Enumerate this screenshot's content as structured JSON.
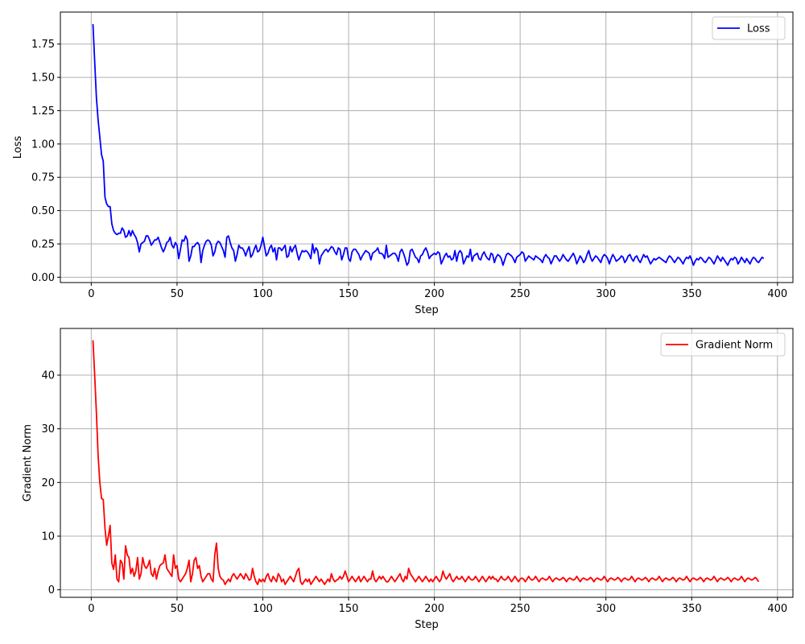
{
  "chart_data": [
    {
      "type": "line",
      "xlabel": "Step",
      "ylabel": "Loss",
      "xlim": [
        -18,
        409
      ],
      "ylim": [
        -0.04,
        1.99
      ],
      "xticks": [
        0,
        50,
        100,
        150,
        200,
        250,
        300,
        350,
        400
      ],
      "yticks": [
        0.0,
        0.25,
        0.5,
        0.75,
        1.0,
        1.25,
        1.5,
        1.75
      ],
      "ytick_labels": [
        "0.00",
        "0.25",
        "0.50",
        "0.75",
        "1.00",
        "1.25",
        "1.50",
        "1.75"
      ],
      "grid": true,
      "legend": "top-right",
      "series": [
        {
          "name": "Loss",
          "color": "#0000ff",
          "x_start": 1,
          "x_step": 1,
          "values": [
            1.9,
            1.62,
            1.35,
            1.18,
            1.05,
            0.92,
            0.87,
            0.6,
            0.55,
            0.53,
            0.53,
            0.4,
            0.35,
            0.33,
            0.32,
            0.33,
            0.33,
            0.37,
            0.35,
            0.3,
            0.31,
            0.35,
            0.31,
            0.35,
            0.32,
            0.3,
            0.26,
            0.19,
            0.25,
            0.26,
            0.27,
            0.31,
            0.31,
            0.28,
            0.24,
            0.26,
            0.28,
            0.28,
            0.3,
            0.26,
            0.22,
            0.19,
            0.22,
            0.26,
            0.27,
            0.3,
            0.24,
            0.22,
            0.26,
            0.24,
            0.14,
            0.21,
            0.28,
            0.27,
            0.31,
            0.28,
            0.12,
            0.16,
            0.23,
            0.23,
            0.25,
            0.26,
            0.24,
            0.11,
            0.2,
            0.24,
            0.27,
            0.28,
            0.27,
            0.24,
            0.16,
            0.19,
            0.25,
            0.27,
            0.26,
            0.23,
            0.2,
            0.15,
            0.3,
            0.31,
            0.26,
            0.22,
            0.2,
            0.12,
            0.17,
            0.24,
            0.22,
            0.22,
            0.2,
            0.16,
            0.2,
            0.23,
            0.15,
            0.17,
            0.21,
            0.24,
            0.19,
            0.2,
            0.24,
            0.3,
            0.23,
            0.16,
            0.18,
            0.22,
            0.24,
            0.19,
            0.22,
            0.13,
            0.22,
            0.22,
            0.2,
            0.22,
            0.24,
            0.15,
            0.16,
            0.23,
            0.19,
            0.22,
            0.24,
            0.18,
            0.13,
            0.17,
            0.2,
            0.19,
            0.2,
            0.19,
            0.17,
            0.14,
            0.25,
            0.18,
            0.22,
            0.2,
            0.1,
            0.16,
            0.18,
            0.2,
            0.21,
            0.19,
            0.21,
            0.23,
            0.22,
            0.19,
            0.17,
            0.22,
            0.21,
            0.13,
            0.17,
            0.22,
            0.22,
            0.14,
            0.12,
            0.19,
            0.21,
            0.21,
            0.19,
            0.17,
            0.13,
            0.16,
            0.18,
            0.2,
            0.19,
            0.18,
            0.13,
            0.18,
            0.19,
            0.2,
            0.22,
            0.18,
            0.18,
            0.17,
            0.14,
            0.24,
            0.15,
            0.16,
            0.17,
            0.18,
            0.18,
            0.16,
            0.12,
            0.19,
            0.21,
            0.18,
            0.14,
            0.09,
            0.11,
            0.2,
            0.21,
            0.18,
            0.15,
            0.14,
            0.11,
            0.16,
            0.17,
            0.2,
            0.22,
            0.19,
            0.14,
            0.16,
            0.17,
            0.18,
            0.17,
            0.19,
            0.18,
            0.1,
            0.13,
            0.16,
            0.18,
            0.15,
            0.16,
            0.13,
            0.14,
            0.2,
            0.12,
            0.18,
            0.2,
            0.18,
            0.1,
            0.13,
            0.16,
            0.15,
            0.21,
            0.12,
            0.16,
            0.17,
            0.18,
            0.14,
            0.13,
            0.17,
            0.19,
            0.16,
            0.14,
            0.13,
            0.18,
            0.17,
            0.11,
            0.15,
            0.17,
            0.16,
            0.14,
            0.09,
            0.13,
            0.17,
            0.18,
            0.17,
            0.16,
            0.14,
            0.11,
            0.15,
            0.16,
            0.17,
            0.19,
            0.18,
            0.12,
            0.14,
            0.16,
            0.15,
            0.14,
            0.13,
            0.16,
            0.15,
            0.14,
            0.13,
            0.11,
            0.15,
            0.17,
            0.15,
            0.14,
            0.1,
            0.13,
            0.16,
            0.16,
            0.14,
            0.12,
            0.14,
            0.17,
            0.15,
            0.13,
            0.12,
            0.14,
            0.16,
            0.18,
            0.15,
            0.1,
            0.13,
            0.16,
            0.14,
            0.11,
            0.13,
            0.17,
            0.2,
            0.15,
            0.12,
            0.14,
            0.16,
            0.15,
            0.13,
            0.11,
            0.15,
            0.17,
            0.16,
            0.14,
            0.1,
            0.14,
            0.17,
            0.15,
            0.12,
            0.13,
            0.14,
            0.16,
            0.15,
            0.11,
            0.13,
            0.16,
            0.17,
            0.14,
            0.12,
            0.15,
            0.16,
            0.13,
            0.11,
            0.14,
            0.17,
            0.15,
            0.16,
            0.13,
            0.1,
            0.12,
            0.14,
            0.13,
            0.14,
            0.15,
            0.14,
            0.13,
            0.12,
            0.11,
            0.14,
            0.16,
            0.15,
            0.13,
            0.11,
            0.13,
            0.15,
            0.14,
            0.12,
            0.1,
            0.13,
            0.15,
            0.14,
            0.16,
            0.13,
            0.09,
            0.12,
            0.14,
            0.13,
            0.15,
            0.14,
            0.12,
            0.11,
            0.13,
            0.15,
            0.14,
            0.12,
            0.1,
            0.13,
            0.16,
            0.14,
            0.12,
            0.15,
            0.13,
            0.11,
            0.09,
            0.12,
            0.14,
            0.13,
            0.15,
            0.14,
            0.1,
            0.12,
            0.15,
            0.13,
            0.11,
            0.14,
            0.12,
            0.1,
            0.13,
            0.15,
            0.14,
            0.12,
            0.11,
            0.13,
            0.15,
            0.14
          ]
        }
      ]
    },
    {
      "type": "line",
      "xlabel": "Step",
      "ylabel": "Gradient Norm",
      "xlim": [
        -18,
        409
      ],
      "ylim": [
        -1.4,
        48.7
      ],
      "xticks": [
        0,
        50,
        100,
        150,
        200,
        250,
        300,
        350,
        400
      ],
      "yticks": [
        0,
        10,
        20,
        30,
        40
      ],
      "ytick_labels": [
        "0",
        "10",
        "20",
        "30",
        "40"
      ],
      "grid": true,
      "legend": "top-right",
      "series": [
        {
          "name": "Gradient Norm",
          "color": "#ff0000",
          "x_start": 1,
          "x_step": 1,
          "values": [
            46.5,
            40.0,
            33.0,
            25.0,
            20.0,
            17.0,
            16.8,
            11.5,
            8.3,
            10.0,
            12.0,
            5.0,
            3.8,
            6.5,
            2.0,
            1.5,
            5.5,
            5.0,
            2.0,
            8.2,
            6.5,
            6.0,
            3.0,
            4.0,
            2.5,
            3.5,
            6.0,
            2.0,
            3.0,
            6.0,
            4.5,
            4.0,
            4.5,
            5.5,
            3.0,
            2.5,
            4.0,
            2.0,
            3.5,
            4.5,
            4.8,
            5.0,
            6.5,
            4.0,
            3.5,
            3.0,
            2.5,
            6.5,
            4.0,
            4.5,
            2.0,
            1.5,
            2.0,
            2.5,
            3.0,
            4.0,
            5.5,
            1.5,
            3.0,
            5.5,
            6.0,
            4.0,
            4.5,
            2.5,
            1.5,
            2.0,
            2.5,
            3.0,
            3.0,
            2.0,
            1.5,
            6.5,
            8.7,
            4.0,
            2.5,
            2.0,
            1.8,
            1.0,
            1.5,
            2.0,
            1.5,
            2.5,
            3.0,
            2.5,
            2.0,
            2.5,
            3.0,
            2.5,
            2.0,
            3.0,
            2.5,
            1.8,
            2.0,
            4.0,
            2.5,
            1.5,
            1.0,
            2.0,
            1.5,
            2.0,
            1.5,
            2.5,
            3.0,
            2.0,
            1.5,
            2.5,
            2.0,
            1.5,
            3.0,
            2.5,
            1.5,
            2.0,
            1.0,
            1.5,
            2.0,
            2.5,
            2.0,
            1.5,
            2.5,
            3.5,
            4.0,
            1.5,
            1.0,
            1.5,
            2.0,
            1.5,
            2.0,
            1.0,
            1.5,
            2.0,
            2.5,
            2.0,
            1.5,
            2.0,
            1.5,
            1.0,
            1.5,
            2.0,
            1.5,
            3.0,
            2.0,
            1.5,
            1.8,
            2.0,
            2.5,
            2.0,
            2.5,
            3.5,
            2.5,
            1.5,
            2.0,
            2.5,
            2.0,
            1.5,
            2.0,
            2.5,
            1.5,
            2.0,
            2.5,
            2.0,
            1.5,
            2.0,
            2.0,
            3.5,
            2.0,
            1.5,
            2.0,
            2.5,
            2.0,
            2.5,
            2.0,
            1.5,
            1.5,
            2.0,
            2.5,
            2.0,
            1.5,
            2.0,
            2.5,
            3.0,
            2.0,
            1.5,
            2.5,
            2.0,
            4.0,
            3.0,
            2.5,
            2.0,
            1.5,
            2.0,
            2.5,
            2.0,
            1.5,
            2.0,
            2.5,
            2.0,
            1.5,
            2.0,
            1.5,
            2.0,
            2.5,
            2.0,
            1.5,
            2.0,
            3.5,
            2.5,
            2.0,
            2.5,
            3.0,
            2.0,
            1.5,
            2.0,
            2.5,
            2.0,
            2.0,
            2.5,
            2.0,
            1.5,
            2.0,
            2.5,
            2.0,
            1.8,
            2.0,
            2.5,
            2.0,
            1.5,
            2.0,
            2.5,
            2.0,
            1.5,
            2.0,
            2.5,
            2.0,
            2.5,
            2.0,
            2.0,
            1.5,
            2.0,
            2.5,
            2.0,
            1.8,
            2.0,
            2.5,
            2.0,
            1.5,
            2.0,
            2.5,
            2.0,
            1.5,
            2.0,
            2.2,
            2.0,
            1.5,
            2.0,
            2.5,
            2.0,
            1.8,
            2.0,
            2.5,
            2.0,
            1.5,
            2.0,
            2.2,
            2.0,
            1.8,
            2.0,
            2.5,
            2.0,
            1.5,
            2.0,
            2.2,
            2.0,
            1.8,
            2.0,
            2.3,
            2.0,
            1.5,
            2.0,
            2.2,
            2.0,
            1.8,
            2.0,
            2.5,
            2.0,
            1.5,
            2.0,
            2.2,
            2.0,
            1.8,
            2.0,
            2.3,
            2.0,
            1.5,
            2.0,
            2.2,
            2.0,
            1.8,
            2.0,
            2.5,
            2.0,
            1.5,
            2.0,
            2.2,
            2.0,
            1.8,
            2.0,
            2.3,
            2.0,
            1.5,
            2.0,
            2.2,
            2.0,
            1.8,
            2.0,
            2.5,
            2.0,
            1.5,
            2.0,
            2.2,
            2.0,
            1.8,
            2.0,
            2.3,
            2.0,
            1.5,
            2.0,
            2.2,
            2.0,
            1.8,
            2.0,
            2.5,
            2.0,
            1.5,
            2.0,
            2.2,
            2.0,
            1.8,
            2.0,
            2.3,
            2.0,
            1.5,
            2.0,
            2.2,
            2.0,
            1.8,
            2.0,
            2.5,
            2.0,
            1.5,
            2.0,
            2.2,
            2.0,
            1.8,
            2.0,
            2.3,
            2.0,
            1.5,
            2.0,
            2.2,
            2.0,
            1.8,
            2.0,
            2.5,
            2.0,
            1.5,
            2.0,
            2.2,
            2.0,
            1.8,
            2.0,
            2.3,
            2.0,
            1.5,
            2.0,
            2.2,
            2.0,
            1.8,
            2.0,
            2.5,
            2.0,
            1.5,
            2.0,
            2.2,
            2.0,
            1.8,
            2.0,
            2.3,
            2.0,
            1.5
          ]
        }
      ]
    }
  ]
}
